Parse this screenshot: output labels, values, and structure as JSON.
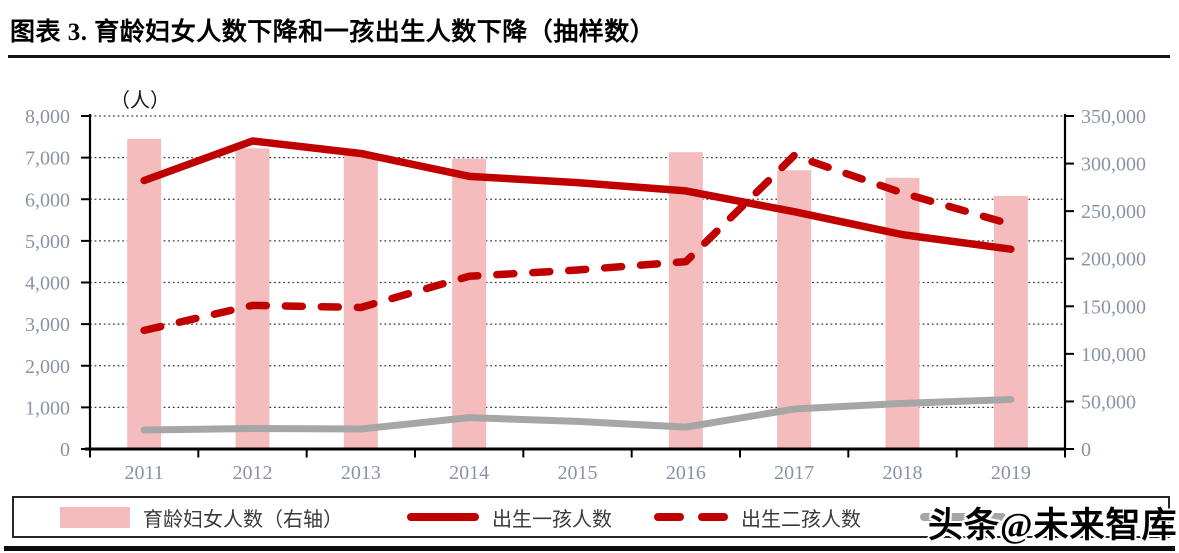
{
  "header": {
    "title": "图表 3. 育龄妇女人数下降和一孩出生人数下降（抽样数）"
  },
  "watermark": "头条@未来智库",
  "chart_data": {
    "type": "bar",
    "subtype": "bar and line combo, dual axis",
    "categories": [
      "2011",
      "2012",
      "2013",
      "2014",
      "2015",
      "2016",
      "2017",
      "2018",
      "2019"
    ],
    "title": "育龄妇女人数下降和一孩出生人数下降（抽样数）",
    "left_axis": {
      "label": "（人）",
      "min": 0,
      "max": 8000,
      "step": 1000,
      "ticks": [
        "0",
        "1,000",
        "2,000",
        "3,000",
        "4,000",
        "5,000",
        "6,000",
        "7,000",
        "8,000"
      ]
    },
    "right_axis": {
      "min": 0,
      "max": 350000,
      "step": 50000,
      "ticks": [
        "0",
        "50,000",
        "100,000",
        "150,000",
        "200,000",
        "250,000",
        "300,000",
        "350,000"
      ]
    },
    "grid": "horizontal dotted",
    "legend_position": "bottom",
    "series": [
      {
        "name": "育龄妇女人数（右轴）",
        "type": "bar",
        "axis": "right",
        "color": "#f5bcbe",
        "values": [
          326000,
          316000,
          309000,
          305000,
          null,
          312000,
          293000,
          285000,
          266000
        ]
      },
      {
        "name": "出生一孩人数",
        "type": "line",
        "line_style": "solid",
        "axis": "left",
        "color": "#c00000",
        "values": [
          6450,
          7400,
          7100,
          6550,
          6400,
          6200,
          5700,
          5150,
          4800
        ]
      },
      {
        "name": "出生二孩人数",
        "type": "line",
        "line_style": "dashed",
        "axis": "left",
        "color": "#c00000",
        "values": [
          2850,
          3450,
          3400,
          4150,
          4300,
          4500,
          7050,
          6150,
          5400
        ]
      },
      {
        "name": "",
        "label_obscured_by_watermark": true,
        "type": "line",
        "line_style": "solid",
        "axis": "right",
        "color": "#a6a6a6",
        "values": [
          20000,
          21500,
          21000,
          33000,
          29000,
          23000,
          42000,
          48000,
          52000
        ]
      }
    ]
  },
  "legend": {
    "items": [
      {
        "label": "育龄妇女人数（右轴）",
        "swatch": "pink-bar"
      },
      {
        "label": "出生一孩人数",
        "swatch": "red-solid-line"
      },
      {
        "label": "出生二孩人数",
        "swatch": "red-dashed-line"
      },
      {
        "label": "",
        "swatch": "gray-line",
        "obscured": true
      }
    ]
  },
  "colors": {
    "bar_pink": "#f5bcbe",
    "line_red": "#c00000",
    "line_gray": "#a6a6a6",
    "axis_text": "#8a93a6",
    "axis_line": "#000000",
    "rule": "#111111"
  }
}
